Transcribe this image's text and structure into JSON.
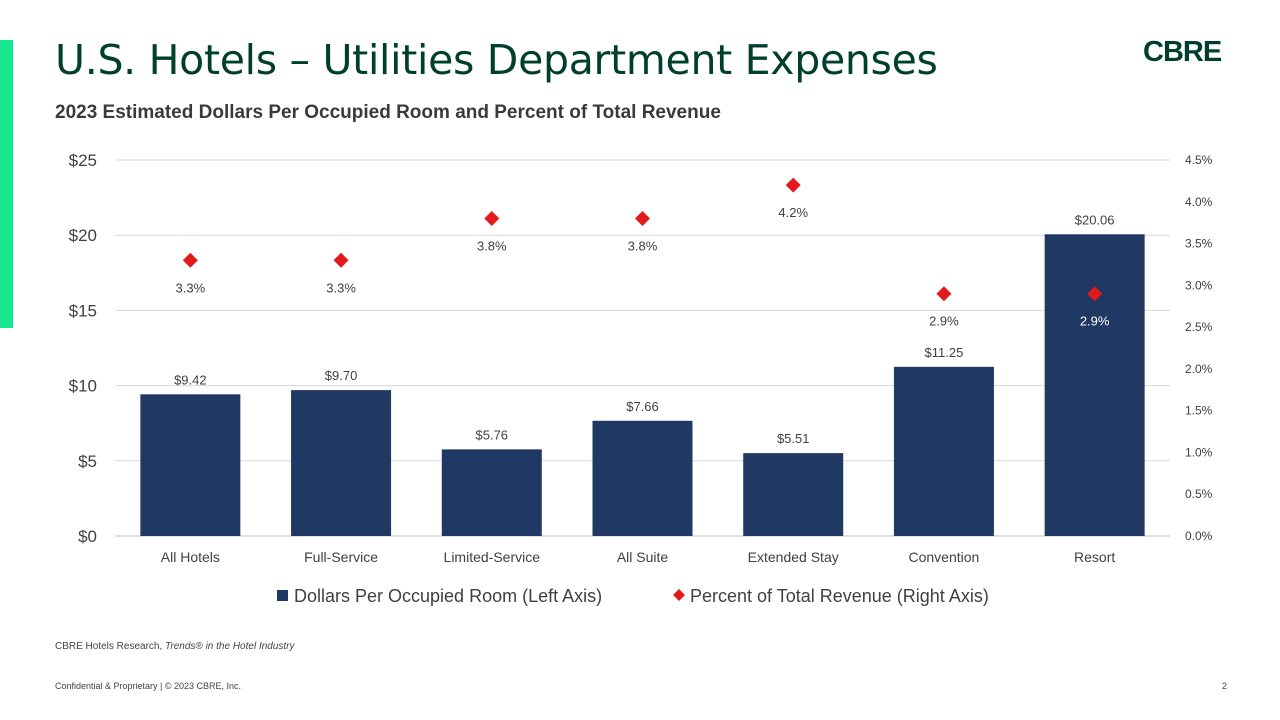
{
  "header": {
    "title": "U.S. Hotels – Utilities Department Expenses",
    "subtitle": "2023 Estimated Dollars Per Occupied Room and Percent of Total Revenue",
    "logo": "CBRE"
  },
  "source": {
    "prefix": "CBRE Hotels Research, ",
    "italic": "Trends® in the Hotel Industry"
  },
  "footer": {
    "text": "Confidential & Proprietary | © 2023 CBRE, Inc.",
    "page": "2"
  },
  "colors": {
    "bar": "#1f3864",
    "marker": "#e31a1c",
    "accent": "#17e88f",
    "brand": "#003f2d"
  },
  "chart_data": {
    "type": "bar",
    "categories": [
      "All Hotels",
      "Full-Service",
      "Limited-Service",
      "All Suite",
      "Extended Stay",
      "Convention",
      "Resort"
    ],
    "series": [
      {
        "name": "Dollars Per Occupied Room (Left Axis)",
        "type": "bar",
        "axis": "left",
        "values": [
          9.42,
          9.7,
          5.76,
          7.66,
          5.51,
          11.25,
          20.06
        ],
        "labels": [
          "$9.42",
          "$9.70",
          "$5.76",
          "$7.66",
          "$5.51",
          "$11.25",
          "$20.06"
        ]
      },
      {
        "name": "Percent of Total Revenue (Right Axis)",
        "type": "scatter",
        "marker": "diamond",
        "axis": "right",
        "values": [
          3.3,
          3.3,
          3.8,
          3.8,
          4.2,
          2.9,
          2.9
        ],
        "labels": [
          "3.3%",
          "3.3%",
          "3.8%",
          "3.8%",
          "4.2%",
          "2.9%",
          "2.9%"
        ]
      }
    ],
    "left_axis": {
      "ylim": [
        0,
        25
      ],
      "ticks": [
        "$0",
        "$5",
        "$10",
        "$15",
        "$20",
        "$25"
      ]
    },
    "right_axis": {
      "ylim": [
        0,
        4.5
      ],
      "ticks": [
        "0.0%",
        "0.5%",
        "1.0%",
        "1.5%",
        "2.0%",
        "2.5%",
        "3.0%",
        "3.5%",
        "4.0%",
        "4.5%"
      ]
    },
    "grid": true,
    "legend": "bottom"
  }
}
